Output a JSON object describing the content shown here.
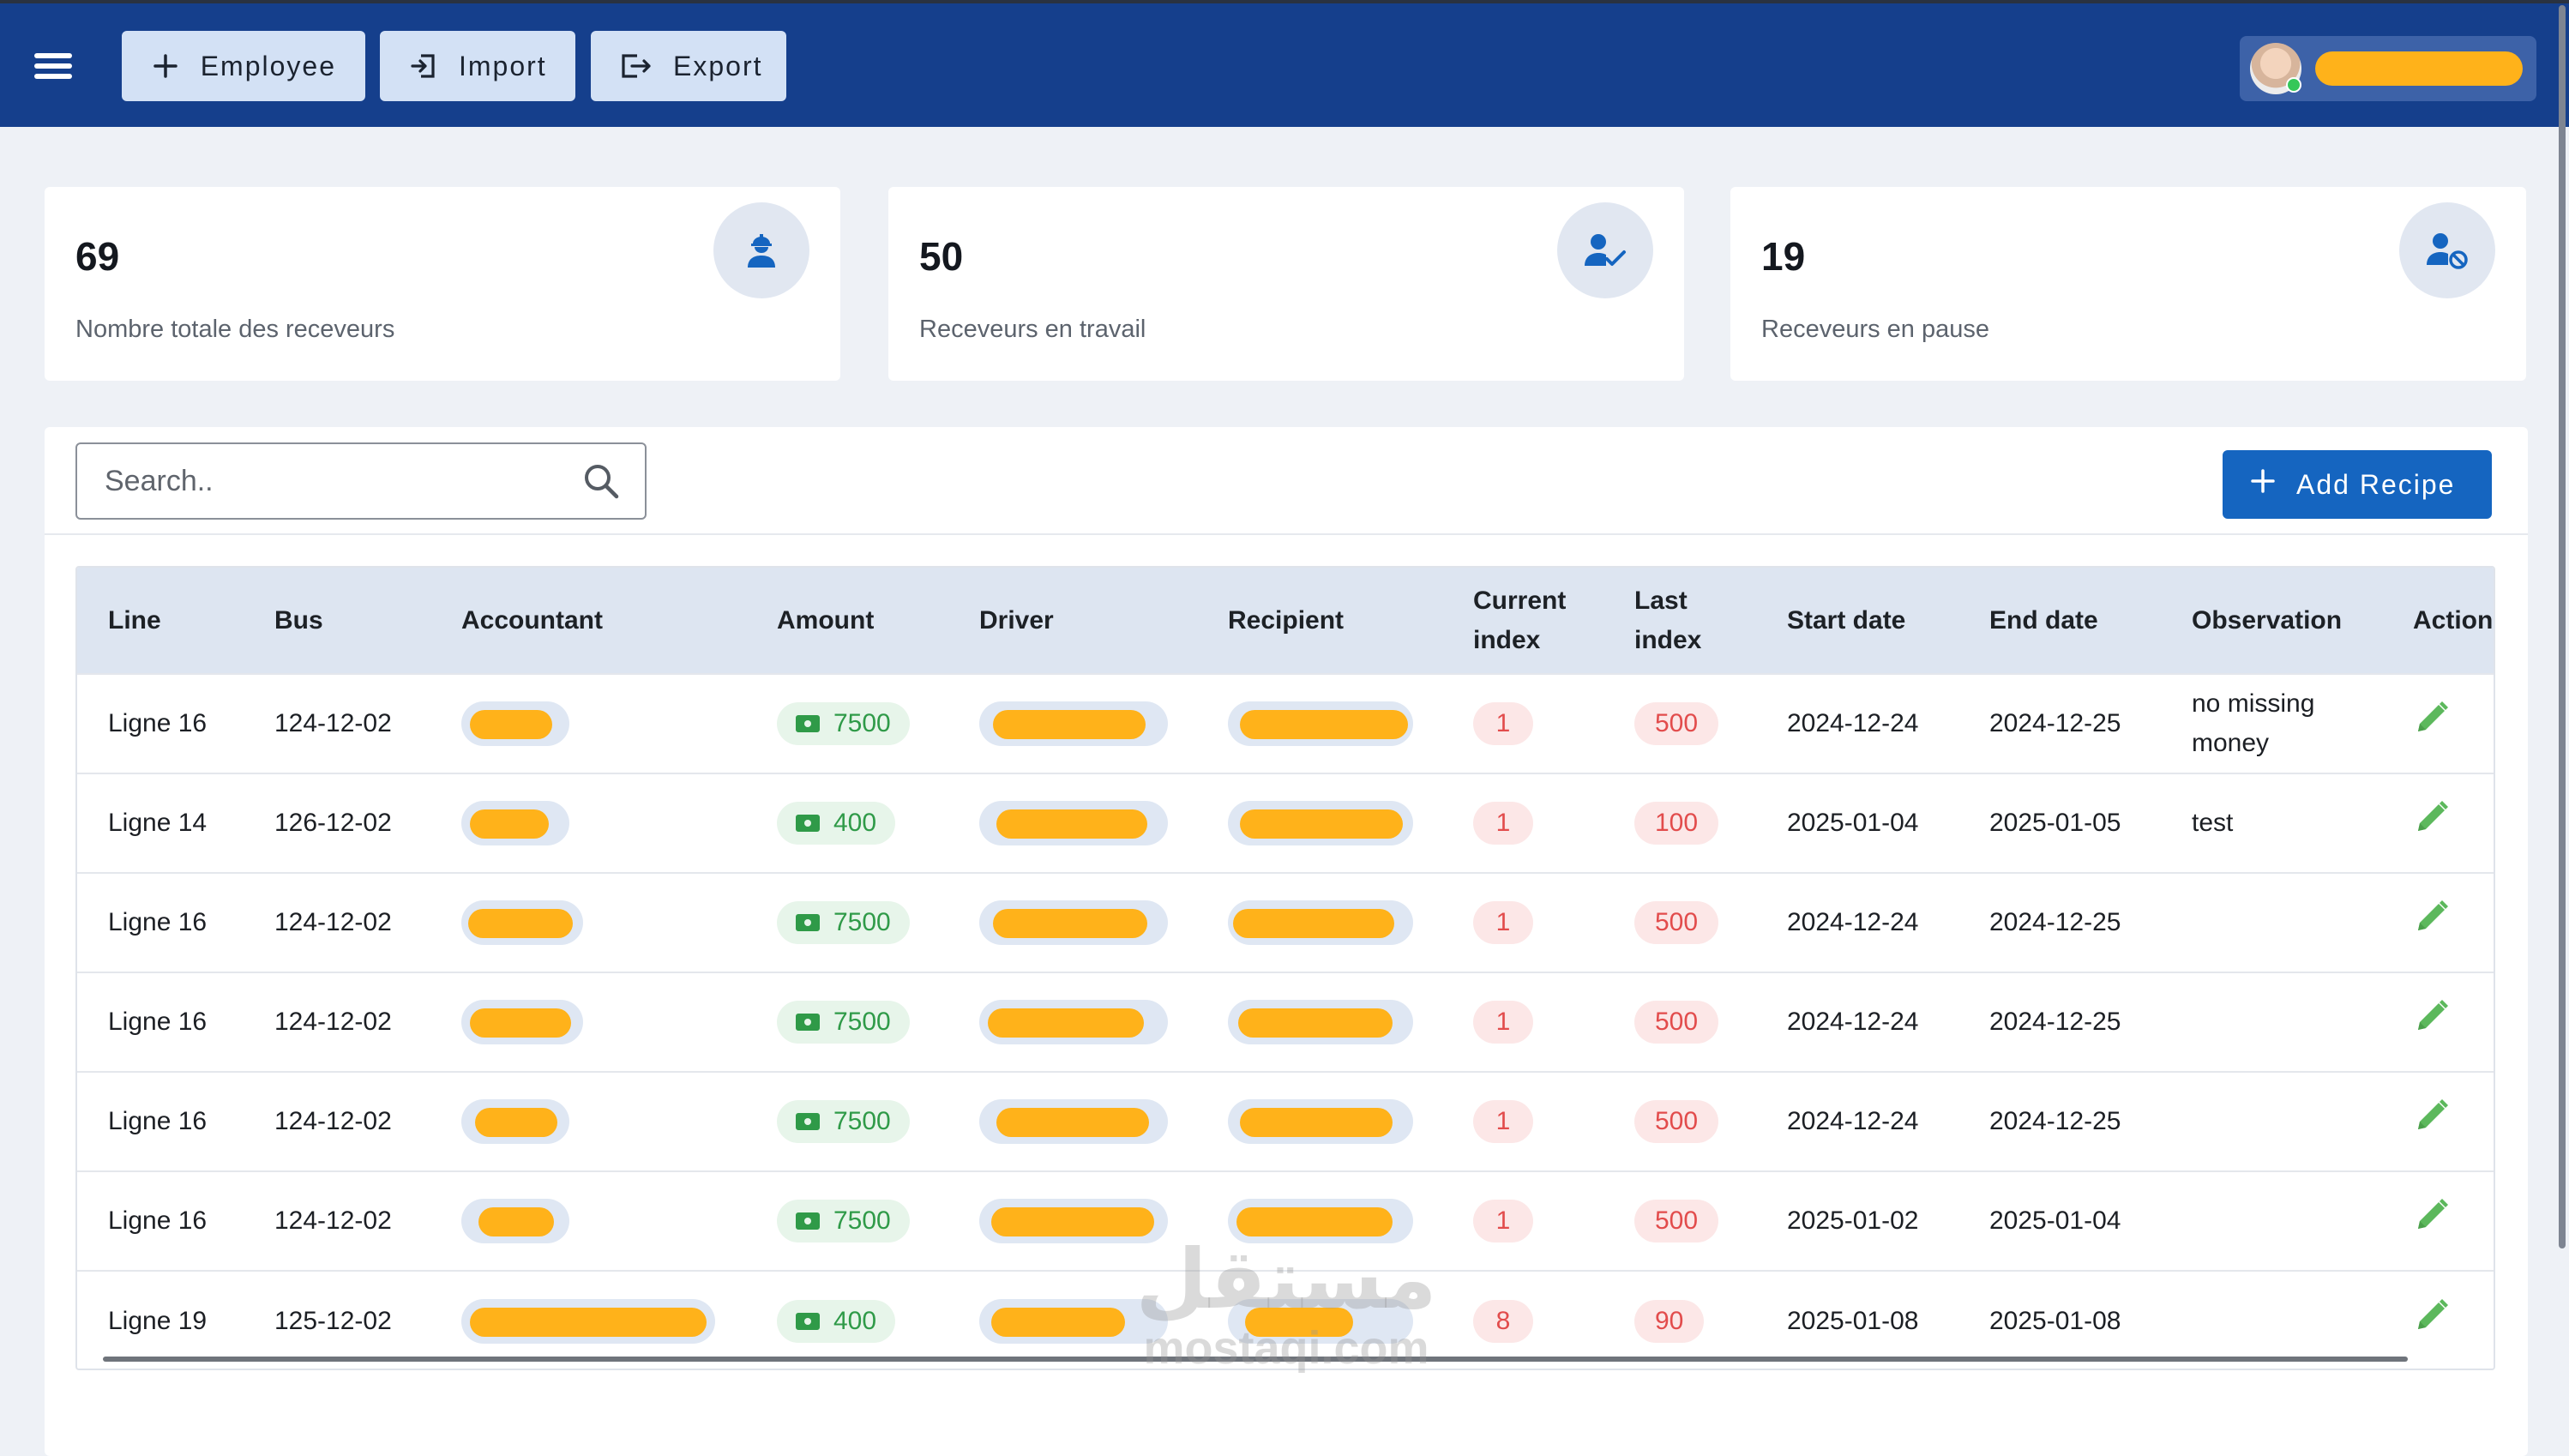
{
  "topbar": {
    "employee_label": "Employee",
    "import_label": "Import",
    "export_label": "Export",
    "bar_color": "#153f8c"
  },
  "stats": [
    {
      "value": "69",
      "label": "Nombre totale des receveurs",
      "icon": "worker-icon"
    },
    {
      "value": "50",
      "label": "Receveurs en travail",
      "icon": "user-check-icon"
    },
    {
      "value": "19",
      "label": "Receveurs en pause",
      "icon": "user-blocked-icon"
    }
  ],
  "search": {
    "placeholder": "Search.."
  },
  "add_recipe_label": "Add Recipe",
  "table": {
    "headers": {
      "line": "Line",
      "bus": "Bus",
      "accountant": "Accountant",
      "amount": "Amount",
      "driver": "Driver",
      "recipient": "Recipient",
      "current_index_1": "Current",
      "current_index_2": "index",
      "last_index_1": "Last",
      "last_index_2": "index",
      "start_date": "Start date",
      "end_date": "End date",
      "observation": "Observation",
      "action": "Action"
    },
    "rows": [
      {
        "line": "Ligne 16",
        "bus": "124-12-02",
        "amount": "7500",
        "current": "1",
        "last": "500",
        "start": "2024-12-24",
        "end": "2024-12-25",
        "obs1": "no missing",
        "obs2": "money"
      },
      {
        "line": "Ligne 14",
        "bus": "126-12-02",
        "amount": "400",
        "current": "1",
        "last": "100",
        "start": "2025-01-04",
        "end": "2025-01-05",
        "obs1": "test",
        "obs2": ""
      },
      {
        "line": "Ligne 16",
        "bus": "124-12-02",
        "amount": "7500",
        "current": "1",
        "last": "500",
        "start": "2024-12-24",
        "end": "2024-12-25",
        "obs1": "",
        "obs2": ""
      },
      {
        "line": "Ligne 16",
        "bus": "124-12-02",
        "amount": "7500",
        "current": "1",
        "last": "500",
        "start": "2024-12-24",
        "end": "2024-12-25",
        "obs1": "",
        "obs2": ""
      },
      {
        "line": "Ligne 16",
        "bus": "124-12-02",
        "amount": "7500",
        "current": "1",
        "last": "500",
        "start": "2024-12-24",
        "end": "2024-12-25",
        "obs1": "",
        "obs2": ""
      },
      {
        "line": "Ligne 16",
        "bus": "124-12-02",
        "amount": "7500",
        "current": "1",
        "last": "500",
        "start": "2025-01-02",
        "end": "2025-01-04",
        "obs1": "",
        "obs2": ""
      },
      {
        "line": "Ligne 19",
        "bus": "125-12-02",
        "amount": "400",
        "current": "8",
        "last": "90",
        "start": "2025-01-08",
        "end": "2025-01-08",
        "obs1": "",
        "obs2": ""
      }
    ]
  },
  "watermark": {
    "arabic": "مستقل",
    "latin": "mostaqi.com"
  }
}
